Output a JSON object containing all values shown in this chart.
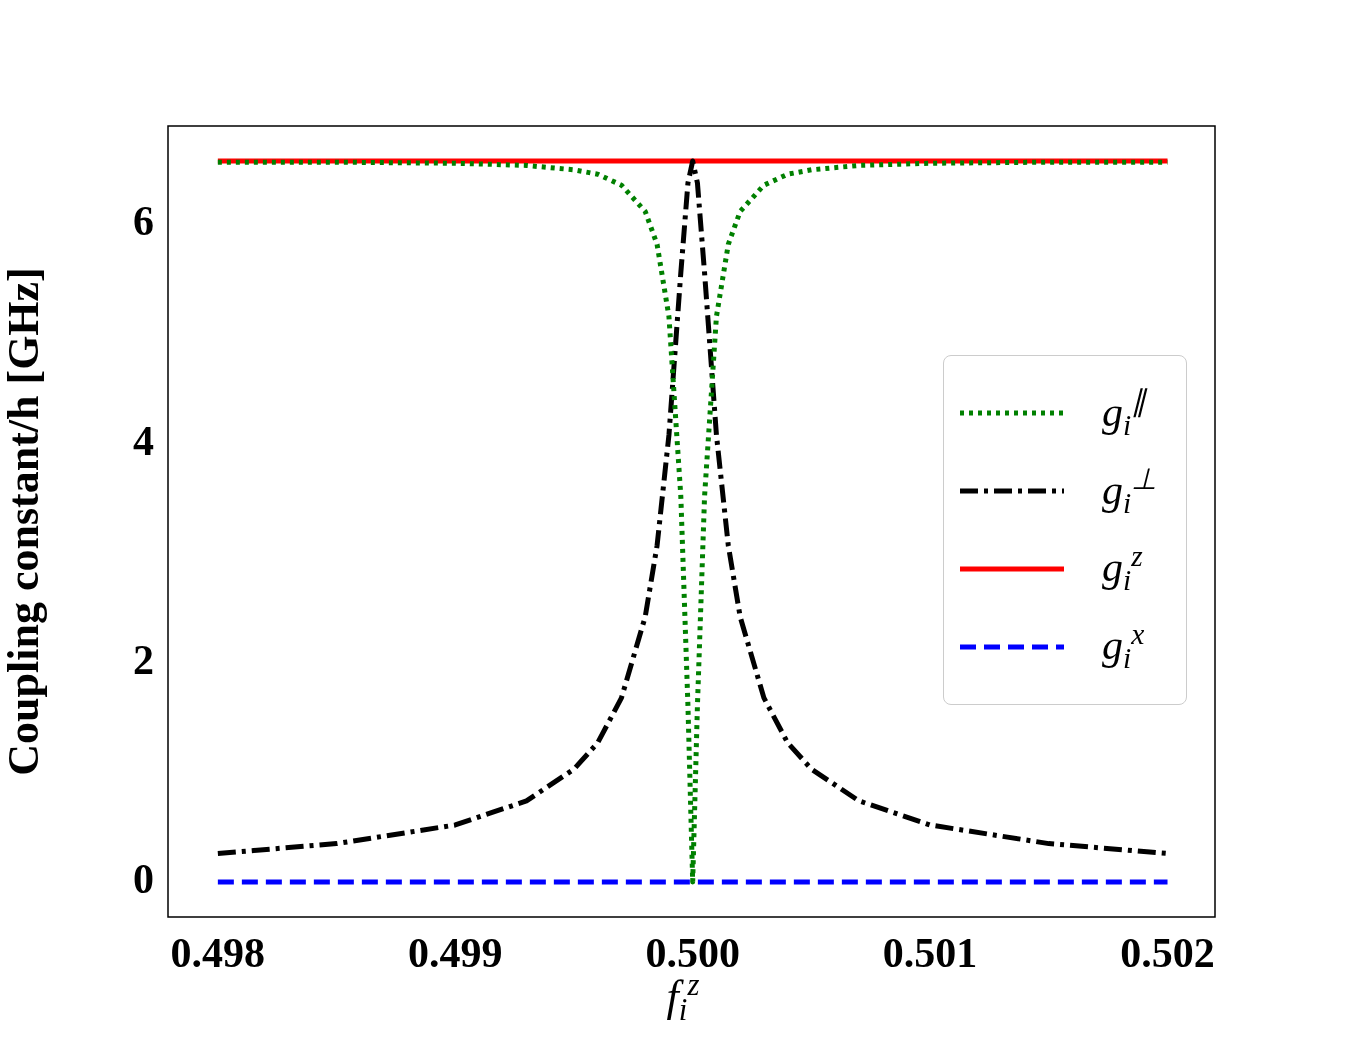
{
  "chart_data": {
    "type": "line",
    "xlabel": "f$_{i}$$^{z}$",
    "ylabel": "Coupling constant/h [GHz]",
    "x": [
      0.498,
      0.4985,
      0.499,
      0.4993,
      0.4995,
      0.4996,
      0.4997,
      0.4998,
      0.49985,
      0.4999,
      0.49995,
      0.49998,
      0.5,
      0.50002,
      0.50005,
      0.5001,
      0.50015,
      0.5002,
      0.5003,
      0.5004,
      0.5005,
      0.5007,
      0.501,
      0.5015,
      0.502
    ],
    "series": [
      {
        "name": "g$_{i}$$^{∥}$",
        "color": "#008000",
        "line_style": "dotted",
        "values": [
          6.57,
          6.57,
          6.56,
          6.54,
          6.5,
          6.46,
          6.36,
          6.12,
          5.82,
          5.16,
          3.52,
          1.61,
          0,
          1.61,
          3.52,
          5.16,
          5.82,
          6.12,
          6.36,
          6.46,
          6.5,
          6.54,
          6.56,
          6.57,
          6.57
        ]
      },
      {
        "name": "g$_{i}$$^{⊥}$",
        "color": "#000000",
        "line_style": "dashdot",
        "values": [
          0.26,
          0.35,
          0.52,
          0.74,
          1.03,
          1.27,
          1.68,
          2.42,
          3.07,
          4.08,
          5.56,
          6.38,
          6.58,
          6.38,
          5.56,
          4.08,
          3.07,
          2.42,
          1.68,
          1.27,
          1.03,
          0.74,
          0.52,
          0.35,
          0.26
        ]
      },
      {
        "name": "g$_{i}$$^{z}$",
        "color": "#ff0000",
        "line_style": "solid",
        "values": [
          6.58,
          6.58,
          6.58,
          6.58,
          6.58,
          6.58,
          6.58,
          6.58,
          6.58,
          6.58,
          6.58,
          6.58,
          6.58,
          6.58,
          6.58,
          6.58,
          6.58,
          6.58,
          6.58,
          6.58,
          6.58,
          6.58,
          6.58,
          6.58,
          6.58
        ]
      },
      {
        "name": "g$_{i}$$^{x}$",
        "color": "#0000ff",
        "line_style": "dashed",
        "values": [
          0,
          0,
          0,
          0,
          0,
          0,
          0,
          0,
          0,
          0,
          0,
          0,
          0,
          0,
          0,
          0,
          0,
          0,
          0,
          0,
          0,
          0,
          0,
          0,
          0
        ]
      }
    ],
    "xlim": [
      0.49779,
      0.5022
    ],
    "xticks": [
      {
        "value": 0.498,
        "label": "0.498"
      },
      {
        "value": 0.499,
        "label": "0.499"
      },
      {
        "value": 0.5,
        "label": "0.500"
      },
      {
        "value": 0.501,
        "label": "0.501"
      },
      {
        "value": 0.502,
        "label": "0.502"
      }
    ],
    "ylim": [
      -0.32,
      6.9
    ],
    "yticks": [
      0,
      2,
      4,
      6
    ],
    "grid": false,
    "legend": "right",
    "marker": "none"
  }
}
